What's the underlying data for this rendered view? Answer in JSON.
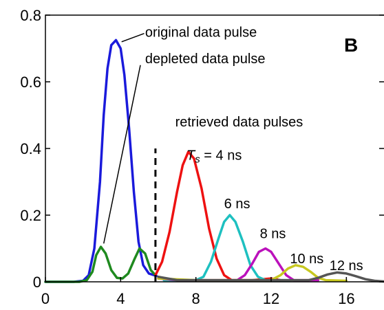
{
  "chart_data": {
    "type": "line",
    "panel_label": "B",
    "xlabel": "",
    "ylabel": "",
    "xlim": [
      0,
      18
    ],
    "ylim": [
      0,
      0.8
    ],
    "x_ticks": [
      0,
      4,
      8,
      12,
      16
    ],
    "y_ticks": [
      0,
      0.2,
      0.4,
      0.6,
      0.8
    ],
    "x_tick_labels": [
      "0",
      "4",
      "8",
      "12",
      "16"
    ],
    "y_tick_labels": [
      "0",
      "0.2",
      "0.4",
      "0.6",
      "0.8"
    ],
    "grid": false,
    "series": [
      {
        "color": "#1a1adb",
        "points": [
          [
            0,
            0.0
          ],
          [
            1.5,
            0.0
          ],
          [
            2.0,
            0.003
          ],
          [
            2.3,
            0.02
          ],
          [
            2.6,
            0.1
          ],
          [
            2.9,
            0.3
          ],
          [
            3.1,
            0.5
          ],
          [
            3.3,
            0.64
          ],
          [
            3.5,
            0.71
          ],
          [
            3.75,
            0.725
          ],
          [
            4.0,
            0.7
          ],
          [
            4.2,
            0.62
          ],
          [
            4.45,
            0.46
          ],
          [
            4.7,
            0.27
          ],
          [
            4.95,
            0.12
          ],
          [
            5.2,
            0.05
          ],
          [
            5.5,
            0.025
          ],
          [
            5.9,
            0.018
          ]
        ]
      },
      {
        "color": "#1f8a1f",
        "points": [
          [
            0,
            0.0
          ],
          [
            1.8,
            0.0
          ],
          [
            2.2,
            0.005
          ],
          [
            2.5,
            0.03
          ],
          [
            2.7,
            0.08
          ],
          [
            2.95,
            0.105
          ],
          [
            3.2,
            0.085
          ],
          [
            3.5,
            0.035
          ],
          [
            3.8,
            0.012
          ],
          [
            4.1,
            0.01
          ],
          [
            4.4,
            0.025
          ],
          [
            4.75,
            0.07
          ],
          [
            5.0,
            0.1
          ],
          [
            5.3,
            0.085
          ],
          [
            5.6,
            0.035
          ],
          [
            5.85,
            0.02
          ]
        ]
      },
      {
        "color": "#ee1111",
        "points": [
          [
            5.85,
            0.02
          ],
          [
            6.2,
            0.06
          ],
          [
            6.6,
            0.15
          ],
          [
            7.0,
            0.27
          ],
          [
            7.3,
            0.35
          ],
          [
            7.6,
            0.39
          ],
          [
            7.9,
            0.37
          ],
          [
            8.3,
            0.28
          ],
          [
            8.7,
            0.16
          ],
          [
            9.1,
            0.07
          ],
          [
            9.5,
            0.02
          ],
          [
            9.9,
            0.005
          ],
          [
            11.0,
            0.005
          ],
          [
            12.0,
            0.01
          ],
          [
            12.5,
            0.005
          ]
        ]
      },
      {
        "color": "#1ec0c0",
        "points": [
          [
            6.3,
            0.005
          ],
          [
            8.0,
            0.005
          ],
          [
            8.4,
            0.015
          ],
          [
            8.8,
            0.06
          ],
          [
            9.2,
            0.13
          ],
          [
            9.5,
            0.18
          ],
          [
            9.8,
            0.2
          ],
          [
            10.1,
            0.18
          ],
          [
            10.5,
            0.12
          ],
          [
            10.9,
            0.05
          ],
          [
            11.3,
            0.015
          ],
          [
            11.7,
            0.005
          ],
          [
            13.0,
            0.005
          ]
        ]
      },
      {
        "color": "#bb11bb",
        "points": [
          [
            6.0,
            0.01
          ],
          [
            7.0,
            0.005
          ],
          [
            10.2,
            0.005
          ],
          [
            10.6,
            0.02
          ],
          [
            11.0,
            0.055
          ],
          [
            11.35,
            0.09
          ],
          [
            11.7,
            0.1
          ],
          [
            12.0,
            0.09
          ],
          [
            12.4,
            0.055
          ],
          [
            12.8,
            0.02
          ],
          [
            13.2,
            0.005
          ],
          [
            14.5,
            0.005
          ]
        ]
      },
      {
        "color": "#c8c820",
        "points": [
          [
            6.0,
            0.01
          ],
          [
            8.0,
            0.005
          ],
          [
            12.0,
            0.005
          ],
          [
            12.5,
            0.02
          ],
          [
            12.9,
            0.04
          ],
          [
            13.3,
            0.05
          ],
          [
            13.7,
            0.045
          ],
          [
            14.1,
            0.03
          ],
          [
            14.5,
            0.012
          ],
          [
            14.9,
            0.005
          ],
          [
            16.0,
            0.003
          ]
        ]
      },
      {
        "color": "#555555",
        "points": [
          [
            6.0,
            0.015
          ],
          [
            7.0,
            0.005
          ],
          [
            14.0,
            0.005
          ],
          [
            14.5,
            0.012
          ],
          [
            15.0,
            0.022
          ],
          [
            15.5,
            0.028
          ],
          [
            16.0,
            0.025
          ],
          [
            16.5,
            0.017
          ],
          [
            17.0,
            0.008
          ],
          [
            17.5,
            0.003
          ],
          [
            18.0,
            0.001
          ]
        ]
      }
    ],
    "dashed_marker": {
      "x": 5.85,
      "y_from": 0,
      "y_to": 0.4
    },
    "annotations": [
      {
        "text": "original data pulse",
        "x": 5.3,
        "y": 0.75,
        "pointer_from": [
          5.25,
          0.745
        ],
        "pointer_to": [
          4.05,
          0.72
        ]
      },
      {
        "text": "depleted data pulse",
        "x": 5.3,
        "y": 0.67,
        "pointer_from": [
          5.05,
          0.65
        ],
        "pointer_to": [
          3.1,
          0.115
        ]
      },
      {
        "text": "retrieved data pulses",
        "x": 6.9,
        "y": 0.48
      }
    ],
    "pulse_labels": [
      {
        "prefix": "T",
        "subscript": "s",
        "text": " = 4 ns",
        "x": 7.5,
        "y": 0.38
      },
      {
        "text": "6 ns",
        "x": 9.5,
        "y": 0.235
      },
      {
        "text": "8 ns",
        "x": 11.4,
        "y": 0.145
      },
      {
        "text": "10 ns",
        "x": 13.0,
        "y": 0.07
      },
      {
        "text": "12 ns",
        "x": 15.1,
        "y": 0.05
      }
    ]
  }
}
